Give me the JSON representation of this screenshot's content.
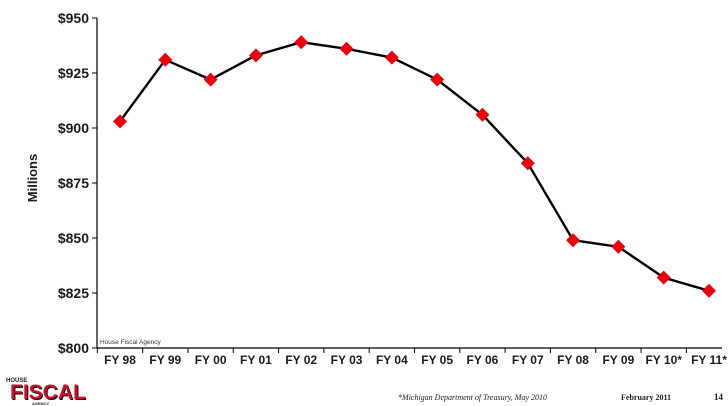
{
  "chart_data": {
    "type": "line",
    "categories": [
      "FY 98",
      "FY 99",
      "FY 00",
      "FY 01",
      "FY 02",
      "FY 03",
      "FY 04",
      "FY 05",
      "FY 06",
      "FY 07",
      "FY 08",
      "FY 09",
      "FY 10*",
      "FY 11*"
    ],
    "series": [
      {
        "values": [
          903,
          931,
          922,
          933,
          939,
          936,
          932,
          922,
          906,
          884,
          849,
          846,
          832,
          826
        ]
      }
    ],
    "ylabel": "Millions",
    "ylim": [
      800,
      950
    ],
    "yticks": [
      800,
      825,
      850,
      875,
      900,
      925,
      950
    ],
    "ytick_labels": [
      "$800",
      "$825",
      "$850",
      "$875",
      "$900",
      "$925",
      "$950"
    ],
    "line_color": "#000000",
    "marker_color": "#e8000b",
    "grid": false,
    "source_note": "House Fiscal Agency"
  },
  "footer": {
    "logo_top": "HOUSE",
    "logo_main": "FISCAL",
    "logo_bottom": "AGENCY",
    "source": "*Michigan Department of Treasury, May 2010",
    "date": "February 2011",
    "page": "14"
  }
}
